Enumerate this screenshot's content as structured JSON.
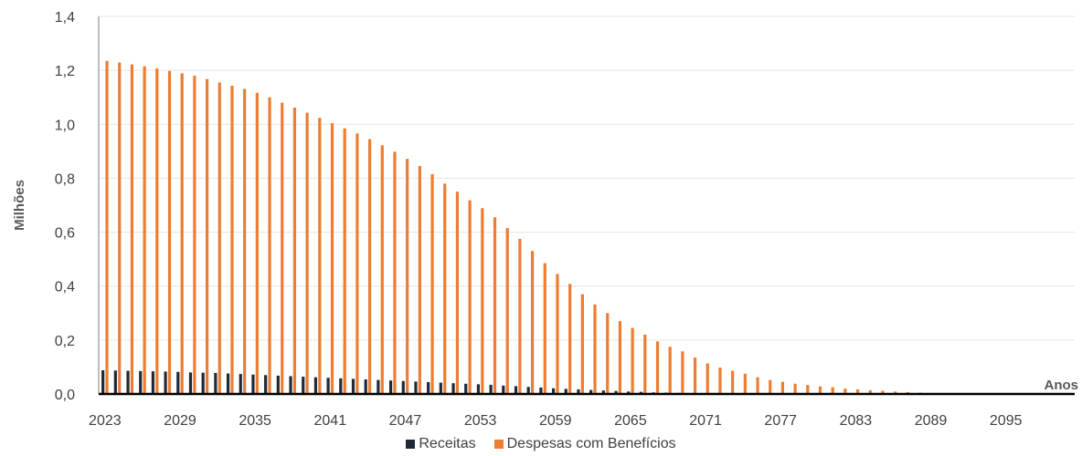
{
  "chart_data": {
    "type": "bar",
    "xlabel": "Anos",
    "ylabel": "Milhões",
    "ylim": [
      0,
      1.4
    ],
    "yticks": [
      "0,0",
      "0,2",
      "0,4",
      "0,6",
      "0,8",
      "1,0",
      "1,2",
      "1,4"
    ],
    "x_start": 2023,
    "x_end": 2100,
    "xtick_labels": [
      "2023",
      "2029",
      "2035",
      "2041",
      "2047",
      "2053",
      "2059",
      "2065",
      "2071",
      "2077",
      "2083",
      "2089",
      "2095"
    ],
    "grid": true,
    "legend_position": "bottom",
    "series": [
      {
        "name": "Receitas",
        "color": "#1f2937",
        "values": [
          0.088,
          0.087,
          0.086,
          0.085,
          0.084,
          0.083,
          0.082,
          0.08,
          0.079,
          0.078,
          0.076,
          0.074,
          0.072,
          0.07,
          0.068,
          0.066,
          0.064,
          0.062,
          0.06,
          0.058,
          0.056,
          0.054,
          0.052,
          0.05,
          0.048,
          0.046,
          0.044,
          0.042,
          0.04,
          0.038,
          0.036,
          0.034,
          0.031,
          0.029,
          0.026,
          0.024,
          0.021,
          0.019,
          0.017,
          0.015,
          0.013,
          0.011,
          0.009,
          0.008,
          0.006,
          0.005,
          0.004,
          0.003,
          0.002,
          0.002,
          0.001,
          0.001,
          0.001,
          0,
          0,
          0,
          0,
          0,
          0,
          0,
          0,
          0,
          0,
          0,
          0,
          0,
          0,
          0,
          0,
          0,
          0,
          0,
          0,
          0,
          0,
          0,
          0,
          0
        ]
      },
      {
        "name": "Despesas com Benefícios",
        "color": "#ed7d31",
        "values": [
          1.235,
          1.229,
          1.222,
          1.215,
          1.207,
          1.198,
          1.189,
          1.18,
          1.168,
          1.155,
          1.143,
          1.131,
          1.117,
          1.1,
          1.08,
          1.062,
          1.043,
          1.024,
          1.004,
          0.985,
          0.966,
          0.945,
          0.922,
          0.898,
          0.872,
          0.845,
          0.815,
          0.78,
          0.75,
          0.718,
          0.689,
          0.655,
          0.615,
          0.575,
          0.53,
          0.485,
          0.445,
          0.408,
          0.37,
          0.332,
          0.3,
          0.27,
          0.245,
          0.22,
          0.195,
          0.175,
          0.158,
          0.135,
          0.113,
          0.098,
          0.086,
          0.075,
          0.062,
          0.052,
          0.045,
          0.038,
          0.033,
          0.028,
          0.025,
          0.02,
          0.017,
          0.014,
          0.012,
          0.009,
          0.007,
          0.005,
          0.004,
          0.003,
          0.002,
          0.002,
          0.001,
          0.001,
          0.001,
          0,
          0,
          0,
          0,
          0
        ]
      }
    ]
  }
}
